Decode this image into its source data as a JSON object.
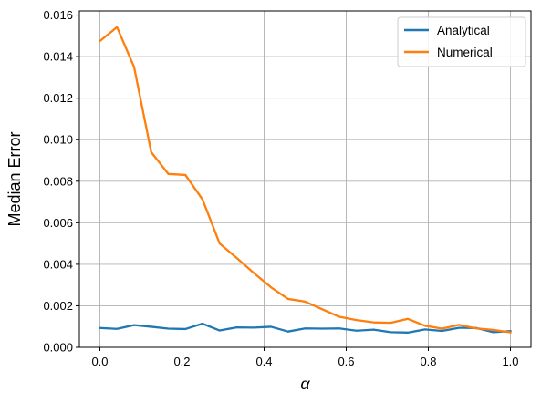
{
  "chart_data": {
    "type": "line",
    "title": "",
    "xlabel": "α",
    "ylabel": "Median Error",
    "xlim": [
      -0.05,
      1.05
    ],
    "ylim": [
      0.0,
      0.0162
    ],
    "xticks": [
      0.0,
      0.2,
      0.4,
      0.6,
      0.8,
      1.0
    ],
    "xtick_labels": [
      "0.0",
      "0.2",
      "0.4",
      "0.6",
      "0.8",
      "1.0"
    ],
    "yticks": [
      0.0,
      0.002,
      0.004,
      0.006,
      0.008,
      0.01,
      0.012,
      0.014,
      0.016
    ],
    "ytick_labels": [
      "0.000",
      "0.002",
      "0.004",
      "0.006",
      "0.008",
      "0.010",
      "0.012",
      "0.014",
      "0.016"
    ],
    "grid": true,
    "legend_position": "top-right",
    "x": [
      0.0,
      0.0417,
      0.0833,
      0.125,
      0.1667,
      0.2083,
      0.25,
      0.2917,
      0.3333,
      0.375,
      0.4167,
      0.4583,
      0.5,
      0.5417,
      0.5833,
      0.625,
      0.6667,
      0.7083,
      0.75,
      0.7917,
      0.8333,
      0.875,
      0.9167,
      0.9583,
      1.0
    ],
    "series": [
      {
        "name": "Analytical",
        "color": "#1f77b4",
        "values": [
          0.00093,
          0.00089,
          0.00107,
          0.00099,
          0.0009,
          0.00088,
          0.00114,
          0.00081,
          0.00096,
          0.00095,
          0.00099,
          0.00076,
          0.00091,
          0.0009,
          0.00091,
          0.0008,
          0.00085,
          0.00073,
          0.00071,
          0.00086,
          0.00079,
          0.00094,
          0.00093,
          0.00073,
          0.00078
        ]
      },
      {
        "name": "Numerical",
        "color": "#ff7f0e",
        "values": [
          0.01475,
          0.01542,
          0.0135,
          0.0094,
          0.00835,
          0.0083,
          0.00712,
          0.005,
          0.0043,
          0.00358,
          0.00289,
          0.00233,
          0.0022,
          0.00183,
          0.00147,
          0.00131,
          0.0012,
          0.00118,
          0.00137,
          0.00104,
          0.0009,
          0.00108,
          0.00091,
          0.00084,
          0.00072
        ]
      }
    ]
  }
}
